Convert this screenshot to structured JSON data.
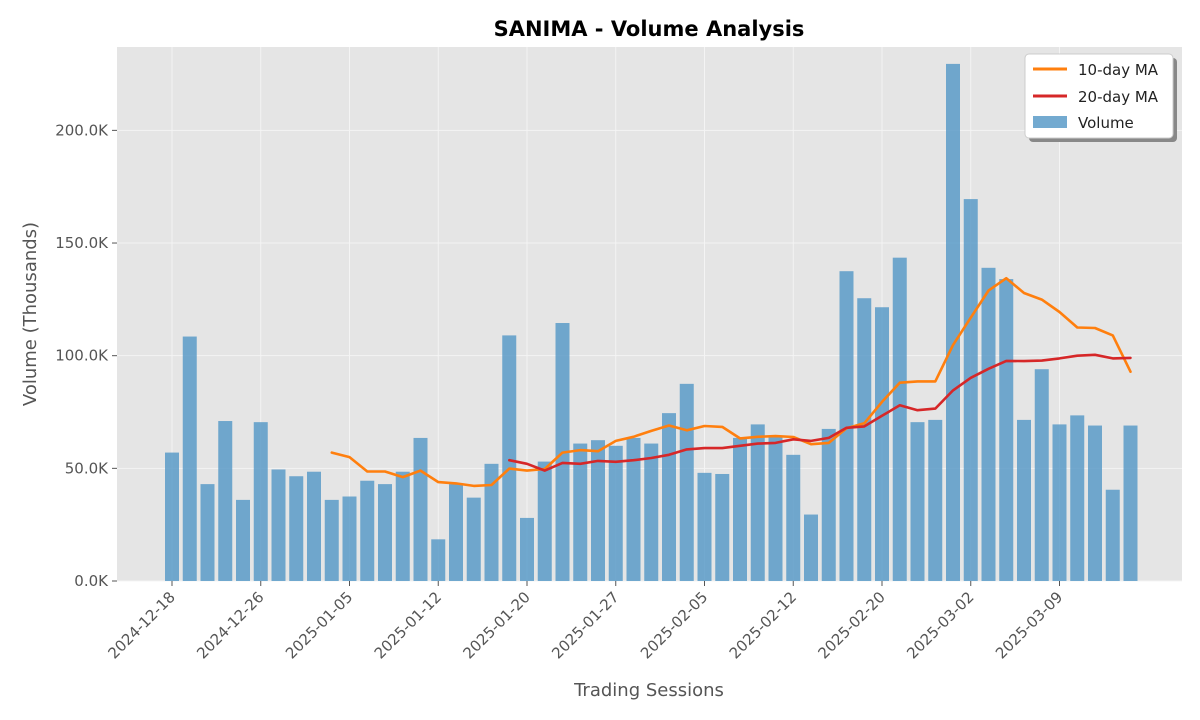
{
  "chart_data": {
    "type": "bar",
    "title": "SANIMA - Volume Analysis",
    "xlabel": "Trading Sessions",
    "ylabel": "Volume (Thousands)",
    "ylim": [
      0,
      237000
    ],
    "grid": true,
    "legend_position": "top-right",
    "y_ticks": [
      0,
      50000,
      100000,
      150000,
      200000
    ],
    "y_tick_labels": [
      "0.0K",
      "50.0K",
      "100.0K",
      "150.0K",
      "200.0K"
    ],
    "x_tick_labels": [
      {
        "index": 0,
        "label": "2024-12-18"
      },
      {
        "index": 5,
        "label": "2024-12-26"
      },
      {
        "index": 10,
        "label": "2025-01-05"
      },
      {
        "index": 15,
        "label": "2025-01-12"
      },
      {
        "index": 20,
        "label": "2025-01-20"
      },
      {
        "index": 25,
        "label": "2025-01-27"
      },
      {
        "index": 30,
        "label": "2025-02-05"
      },
      {
        "index": 35,
        "label": "2025-02-12"
      },
      {
        "index": 40,
        "label": "2025-02-20"
      },
      {
        "index": 45,
        "label": "2025-03-02"
      },
      {
        "index": 50,
        "label": "2025-03-09"
      }
    ],
    "series": [
      {
        "name": "Volume",
        "kind": "bar",
        "color": "#5b9bc8",
        "values": [
          57000,
          108500,
          43000,
          71000,
          36000,
          70500,
          49500,
          46500,
          48500,
          36000,
          37500,
          44500,
          43000,
          48500,
          63500,
          18500,
          43000,
          37000,
          52000,
          109000,
          28000,
          53000,
          114500,
          61000,
          62500,
          60000,
          63500,
          61000,
          74500,
          87500,
          48000,
          47500,
          63500,
          69500,
          64500,
          56000,
          29500,
          67500,
          137500,
          125500,
          121500,
          143500,
          70500,
          71500,
          229500,
          169500,
          139000,
          134000,
          71500,
          94000,
          69500,
          73500,
          69000,
          40500,
          69000
        ]
      },
      {
        "name": "10-day MA",
        "kind": "line",
        "color": "#ff7f0e",
        "start_index": 9,
        "values": [
          57000,
          55000,
          48600,
          48600,
          46100,
          49000,
          43900,
          43300,
          42200,
          42600,
          49900,
          49000,
          49700,
          57000,
          58100,
          57600,
          62200,
          64000,
          66600,
          69000,
          66900,
          68800,
          68400,
          63300,
          64000,
          64300,
          63900,
          60700,
          61300,
          67800,
          70000,
          79500,
          88000,
          88600,
          88600,
          104700,
          116900,
          128900,
          134400,
          127800,
          124900,
          119400,
          112500,
          112300,
          109000,
          92900
        ]
      },
      {
        "name": "20-day MA",
        "kind": "line",
        "color": "#d62728",
        "start_index": 19,
        "values": [
          53600,
          52000,
          49000,
          52400,
          52000,
          53300,
          52900,
          53600,
          54600,
          56000,
          58400,
          59000,
          59000,
          60000,
          61000,
          61300,
          62900,
          62200,
          63500,
          68000,
          68600,
          73300,
          78000,
          75800,
          76500,
          84600,
          90200,
          94200,
          97700,
          97600,
          97800,
          98800,
          100000,
          100400,
          98800,
          99000
        ]
      }
    ]
  }
}
